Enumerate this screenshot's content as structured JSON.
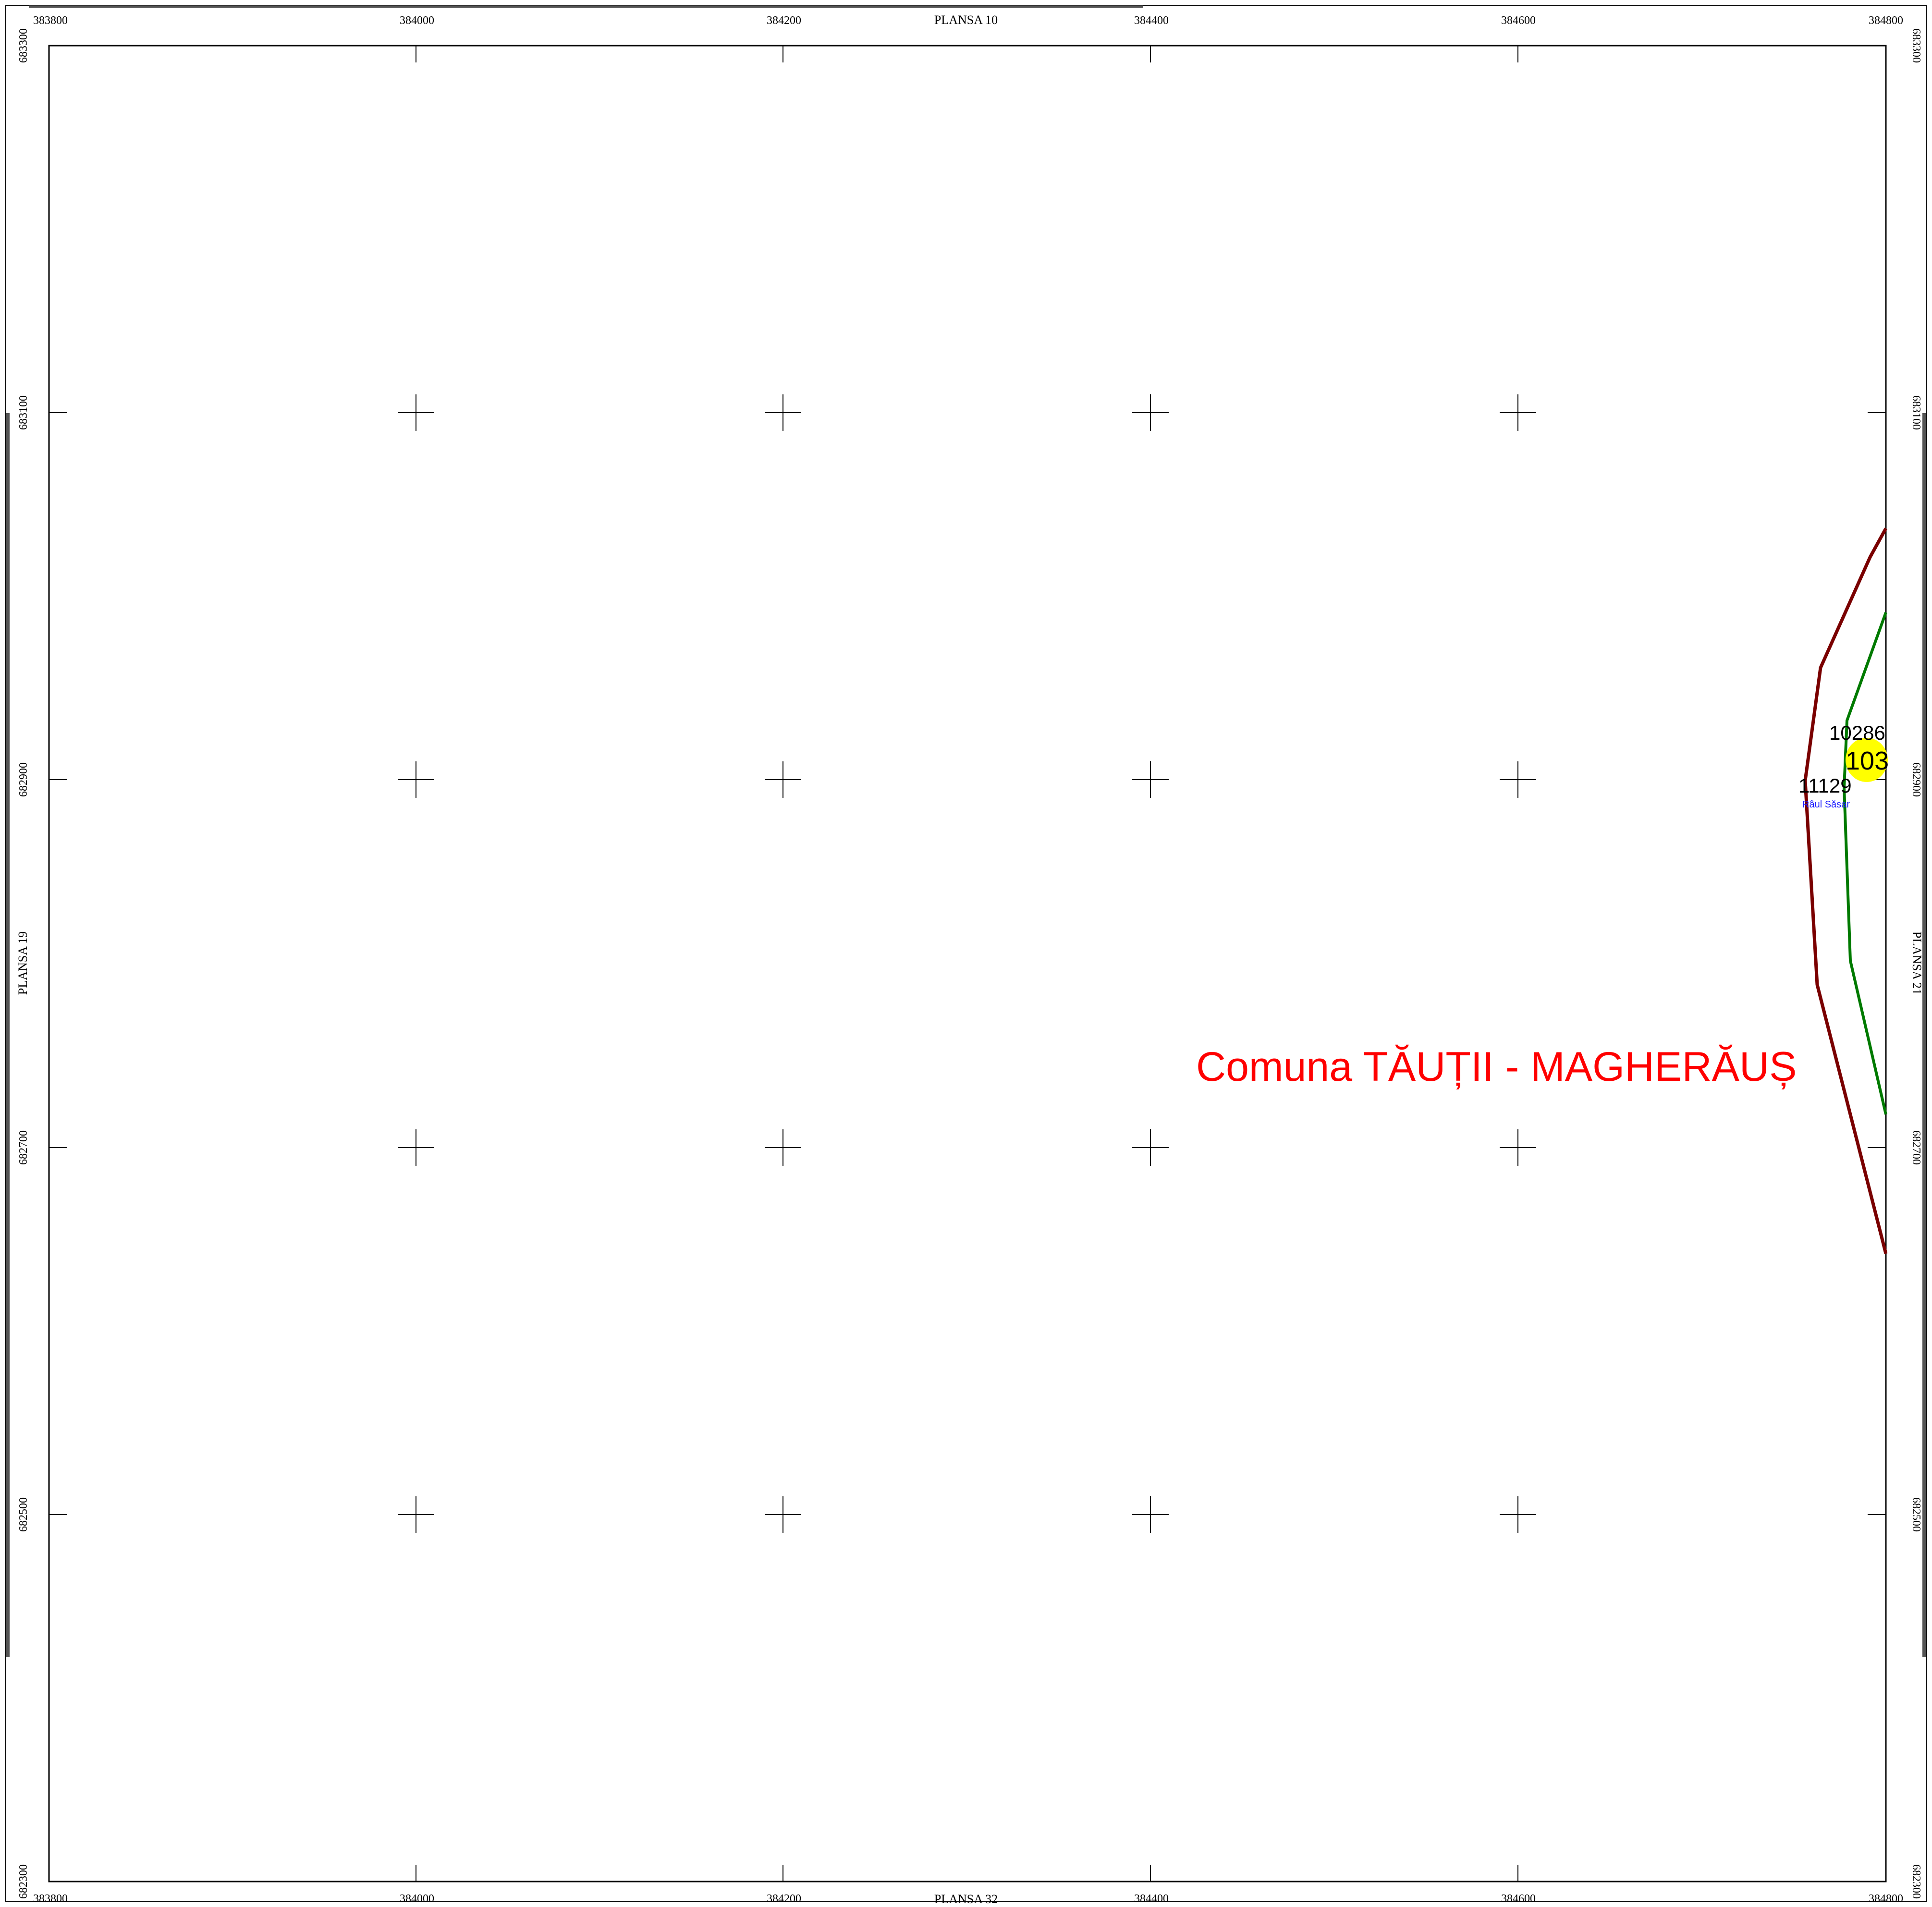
{
  "sheet": {
    "top_neighbor": "PLANSA 10",
    "bottom_neighbor": "PLANSA 32",
    "left_neighbor": "PLANSA 19",
    "right_neighbor": "PLANSA 21"
  },
  "grid": {
    "x_labels": [
      "383800",
      "384000",
      "384200",
      "384400",
      "384600",
      "384800"
    ],
    "y_labels": [
      "683300",
      "683100",
      "682900",
      "682700",
      "682500",
      "682300"
    ]
  },
  "labels": {
    "commune": "Comuna TĂUȚII - MAGHERĂUȘ",
    "parcel_a": "10286",
    "parcel_b": "11129",
    "highlight": "103",
    "river": "Râul Săsar"
  },
  "colors": {
    "commune_label": "#ff0000",
    "boundary_dark_red": "#7a0000",
    "boundary_green": "#007a00",
    "highlight": "#ffff00",
    "river_label": "#1a1aff"
  }
}
